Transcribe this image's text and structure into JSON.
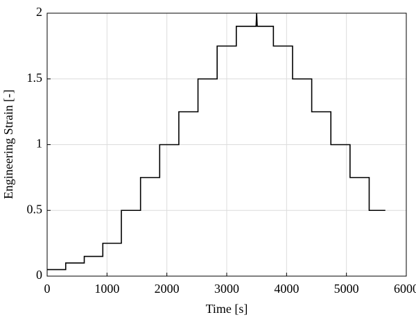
{
  "chart_data": {
    "type": "line",
    "xlabel": "Time [s]",
    "ylabel": "Engineering Strain [-]",
    "x": [
      0,
      310,
      310,
      620,
      620,
      930,
      930,
      1240,
      1240,
      1560,
      1560,
      1880,
      1880,
      2200,
      2200,
      2520,
      2520,
      2840,
      2840,
      3160,
      3160,
      3490,
      3500,
      3510,
      3780,
      3780,
      4100,
      4100,
      4420,
      4420,
      4740,
      4740,
      5060,
      5060,
      5380,
      5380,
      5650
    ],
    "series": [
      {
        "color": "#000000",
        "values": [
          0.05,
          0.05,
          0.1,
          0.1,
          0.15,
          0.15,
          0.25,
          0.25,
          0.5,
          0.5,
          0.75,
          0.75,
          1,
          1,
          1.25,
          1.25,
          1.5,
          1.5,
          1.75,
          1.75,
          1.9,
          1.9,
          2,
          1.9,
          1.9,
          1.75,
          1.75,
          1.5,
          1.5,
          1.25,
          1.25,
          1,
          1,
          0.75,
          0.75,
          0.5,
          0.5
        ]
      }
    ],
    "xlim": [
      0,
      6000
    ],
    "xticks": [
      0,
      1000,
      2000,
      3000,
      4000,
      5000,
      6000
    ],
    "ylim": [
      0,
      2
    ],
    "yticks": [
      0,
      0.5,
      1,
      1.5,
      2
    ],
    "grid": true
  }
}
